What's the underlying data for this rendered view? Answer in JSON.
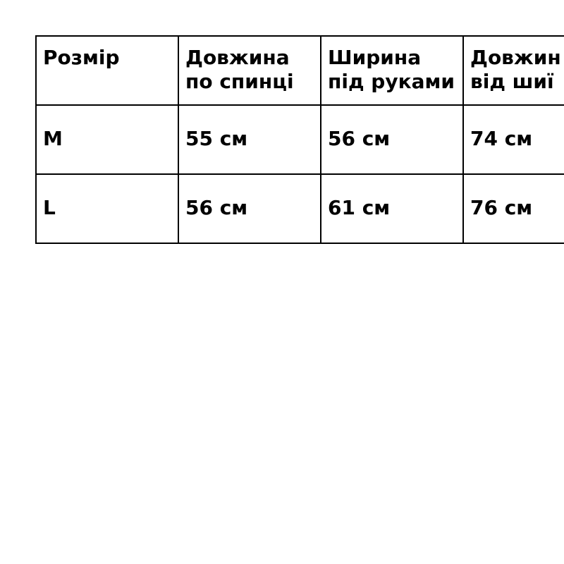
{
  "table": {
    "headers": [
      [
        "Розмір",
        ""
      ],
      [
        "Довжина",
        "по спинці"
      ],
      [
        "Ширина",
        "під руками"
      ],
      [
        "Довжин",
        "від шиї"
      ]
    ],
    "rows": [
      [
        "M",
        "55 см",
        "56 см",
        "74 см"
      ],
      [
        "L",
        "56 см",
        "61 см",
        "76 см"
      ]
    ]
  }
}
